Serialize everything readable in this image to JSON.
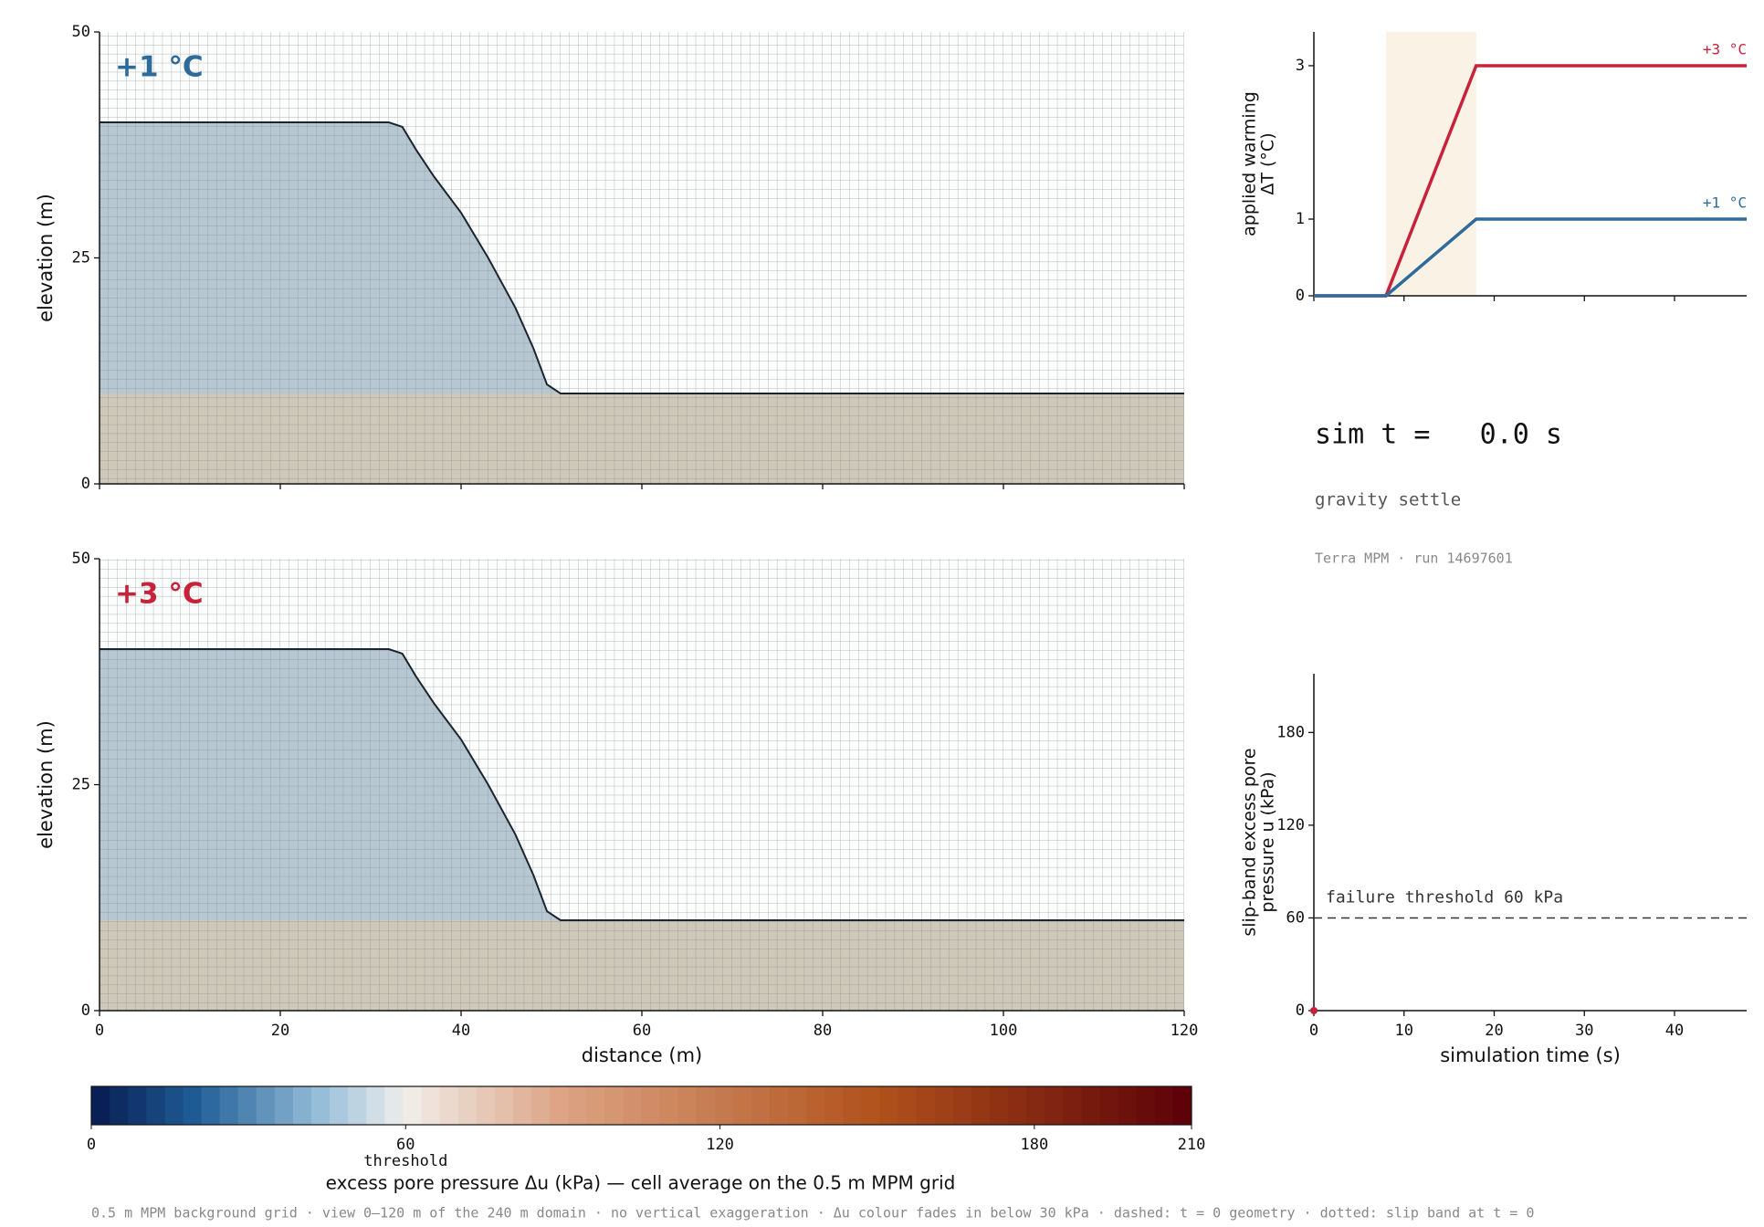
{
  "chart_data": [
    {
      "type": "section",
      "annotation": "+1 °C",
      "annotation_color": "#2e6b9a",
      "ylabel": "elevation (m)",
      "xlim": [
        0,
        120
      ],
      "ylim": [
        0,
        50
      ],
      "yticks": [
        0,
        25,
        50
      ],
      "x": [
        0,
        32,
        33.5,
        35,
        37,
        40,
        43,
        46,
        48,
        49.5,
        51,
        120
      ],
      "values": [
        40,
        40,
        39.5,
        37,
        34,
        30,
        25,
        19.5,
        15,
        11,
        10,
        10
      ],
      "color": "#1b2530"
    },
    {
      "type": "section",
      "annotation": "+3 °C",
      "annotation_color": "#c8213a",
      "ylabel": "elevation (m)",
      "xlabel": "distance (m)",
      "xlim": [
        0,
        120
      ],
      "ylim": [
        0,
        50
      ],
      "yticks": [
        0,
        25,
        50
      ],
      "xticks": [
        0,
        20,
        40,
        60,
        80,
        100,
        120
      ],
      "x": [
        0,
        32,
        33.5,
        35,
        37,
        40,
        43,
        46,
        48,
        49.5,
        51,
        120
      ],
      "values": [
        40,
        40,
        39.5,
        37,
        34,
        30,
        25,
        19.5,
        15,
        11,
        10,
        10
      ],
      "color": "#1b2530"
    },
    {
      "type": "line",
      "ylabel": [
        "applied warming",
        "ΔT (°C)"
      ],
      "xlim": [
        0,
        48
      ],
      "ylim": [
        0,
        3.44
      ],
      "yticks": [
        0,
        1,
        3
      ],
      "xticks": [
        0,
        10,
        20,
        30,
        40
      ],
      "shade": [
        8,
        18
      ],
      "x": [
        0,
        8,
        18,
        48
      ],
      "series": [
        {
          "name": "+3 °C",
          "color": "#c8213a",
          "values": [
            0,
            0,
            3,
            3
          ]
        },
        {
          "name": "+1 °C",
          "color": "#2e6b9a",
          "values": [
            0,
            0,
            1,
            1
          ]
        }
      ]
    },
    {
      "type": "scatter",
      "ylabel": [
        "slip-band excess pore",
        "pressure u (kPa)"
      ],
      "xlabel": "simulation time (s)",
      "xlim": [
        0,
        48
      ],
      "ylim": [
        0,
        218
      ],
      "yticks": [
        0,
        60,
        120,
        180
      ],
      "xticks": [
        0,
        10,
        20,
        30,
        40
      ],
      "threshold": 60,
      "threshold_label": "failure threshold 60 kPa",
      "x": [
        0
      ],
      "values": [
        0
      ],
      "color": "#c8213a"
    },
    {
      "type": "colorbar",
      "label": "excess pore pressure Δu (kPa) — cell average on the 0.5 m MPM grid",
      "clim": [
        0,
        210
      ],
      "ticks": [
        0,
        60,
        120,
        180,
        210
      ],
      "threshold": 60,
      "threshold_label": "threshold",
      "stops": [
        {
          "value": 0,
          "color": "#061a4f"
        },
        {
          "value": 20,
          "color": "#1f5d96"
        },
        {
          "value": 45,
          "color": "#9dc3dc"
        },
        {
          "value": 60,
          "color": "#f2eeea"
        },
        {
          "value": 90,
          "color": "#dca383"
        },
        {
          "value": 150,
          "color": "#b0521c"
        },
        {
          "value": 210,
          "color": "#5c0008"
        }
      ]
    }
  ],
  "status": {
    "time": "sim t =   0.0 s",
    "phase": "gravity settle",
    "run": "Terra MPM · run 14697601"
  },
  "footer": "0.5 m MPM background grid · view 0–120 m of the 240 m domain · no vertical exaggeration · Δu colour fades in below 30 kPa · dashed: t = 0 geometry · dotted: slip band at t = 0"
}
